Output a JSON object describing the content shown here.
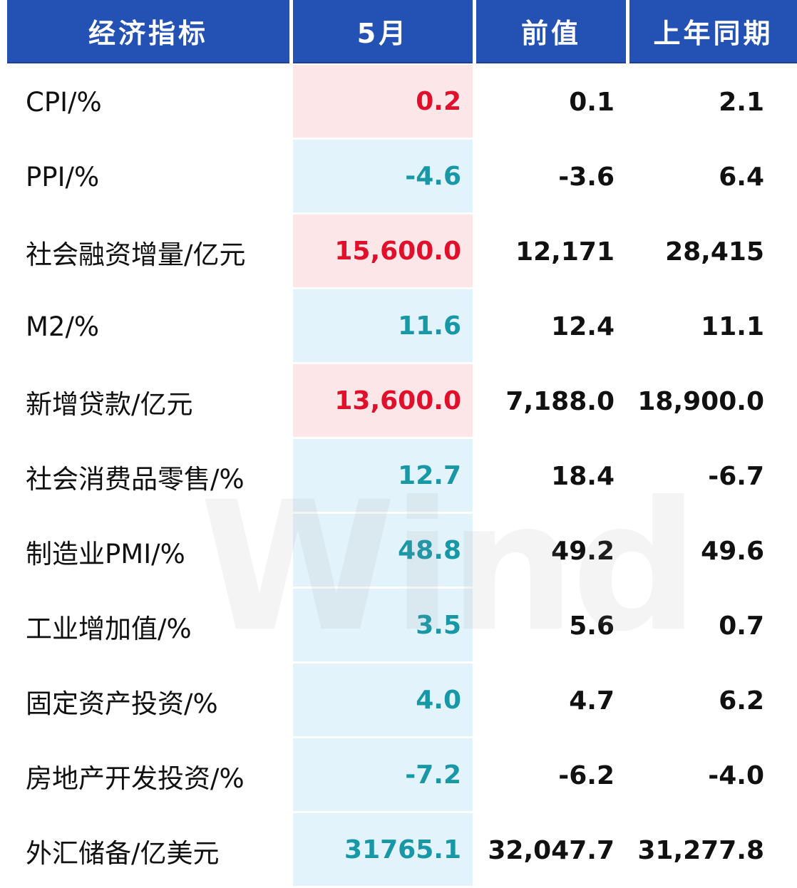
{
  "header": {
    "col_indicator": "经济指标",
    "col_may": "5月",
    "col_prev": "前值",
    "col_last_year": "上年同期"
  },
  "rows": [
    {
      "name": "CPI/%",
      "may": "0.2",
      "prev": "0.1",
      "last_year": "2.1",
      "trend": "up"
    },
    {
      "name": "PPI/%",
      "may": "-4.6",
      "prev": "-3.6",
      "last_year": "6.4",
      "trend": "down"
    },
    {
      "name": "社会融资增量/亿元",
      "may": "15,600.0",
      "prev": "12,171",
      "last_year": "28,415",
      "trend": "up"
    },
    {
      "name": "M2/%",
      "may": "11.6",
      "prev": "12.4",
      "last_year": "11.1",
      "trend": "down"
    },
    {
      "name": "新增贷款/亿元",
      "may": "13,600.0",
      "prev": "7,188.0",
      "last_year": "18,900.0",
      "trend": "up"
    },
    {
      "name": "社会消费品零售/%",
      "may": "12.7",
      "prev": "18.4",
      "last_year": "-6.7",
      "trend": "down"
    },
    {
      "name": "制造业PMI/%",
      "may": "48.8",
      "prev": "49.2",
      "last_year": "49.6",
      "trend": "down"
    },
    {
      "name": "工业增加值/%",
      "may": "3.5",
      "prev": "5.6",
      "last_year": "0.7",
      "trend": "down"
    },
    {
      "name": "固定资产投资/%",
      "may": "4.0",
      "prev": "4.7",
      "last_year": "6.2",
      "trend": "down"
    },
    {
      "name": "房地产开发投资/%",
      "may": "-7.2",
      "prev": "-6.2",
      "last_year": "-4.0",
      "trend": "down"
    },
    {
      "name": "外汇储备/亿美元",
      "may": "31765.1",
      "prev": "32,047.7",
      "last_year": "31,277.8",
      "trend": "down"
    }
  ],
  "watermark": "Wind",
  "colors": {
    "header_bg": "#2451b4",
    "up_text": "#e0102d",
    "up_bg": "#fde6e8",
    "down_text": "#1897a6",
    "down_bg": "#e3f3fb"
  }
}
